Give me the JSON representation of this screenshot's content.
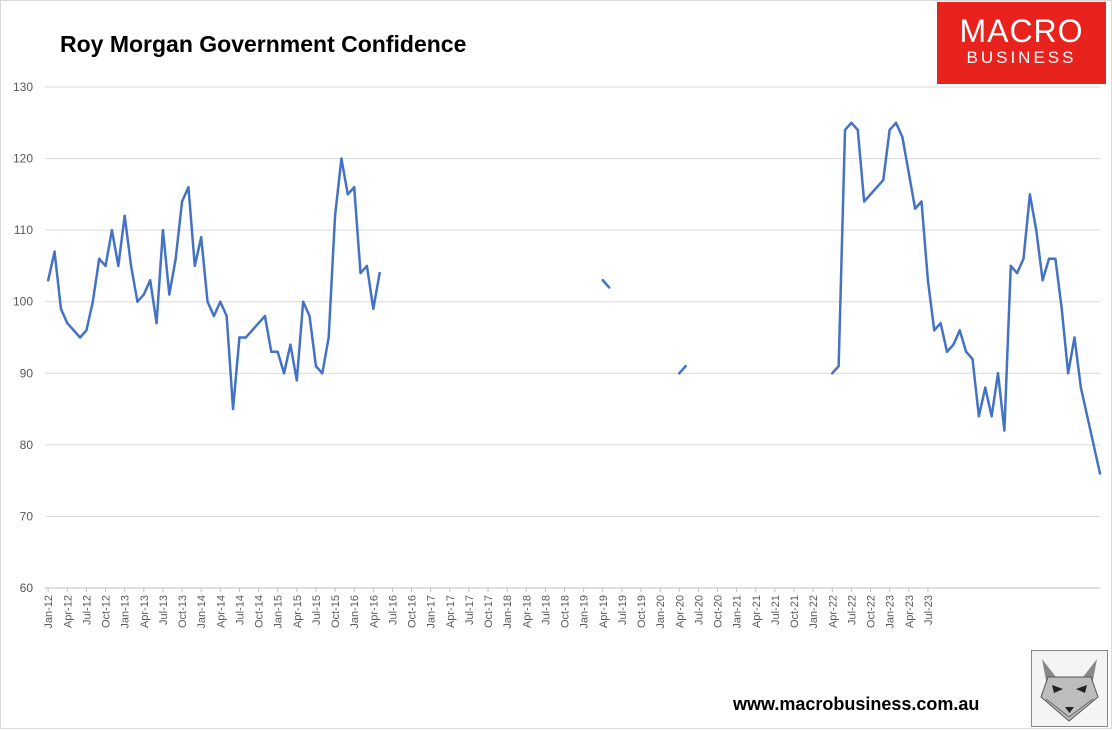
{
  "header": {
    "title": "Roy Morgan Government Confidence"
  },
  "logo": {
    "line1": "MACRO",
    "line2": "BUSINESS",
    "color": "#e8231e"
  },
  "footer": {
    "url": "www.macrobusiness.com.au",
    "mascot_icon": "fox-icon"
  },
  "chart_data": {
    "type": "line",
    "title": "Roy Morgan Government Confidence",
    "xlabel": "",
    "ylabel": "",
    "ylim": [
      60,
      130
    ],
    "yticks": [
      60,
      70,
      80,
      90,
      100,
      110,
      120,
      130
    ],
    "grid": true,
    "legend": "none",
    "line_color": "#4472c4",
    "x_tick_labels": [
      "Jan-12",
      "Apr-12",
      "Jul-12",
      "Oct-12",
      "Jan-13",
      "Apr-13",
      "Jul-13",
      "Oct-13",
      "Jan-14",
      "Apr-14",
      "Jul-14",
      "Oct-14",
      "Jan-15",
      "Apr-15",
      "Jul-15",
      "Oct-15",
      "Jan-16",
      "Apr-16",
      "Jul-16",
      "Oct-16",
      "Jan-17",
      "Apr-17",
      "Jul-17",
      "Oct-17",
      "Jan-18",
      "Apr-18",
      "Jul-18",
      "Oct-18",
      "Jan-19",
      "Apr-19",
      "Jul-19",
      "Oct-19",
      "Jan-20",
      "Apr-20",
      "Jul-20",
      "Oct-20",
      "Jan-21",
      "Apr-21",
      "Jul-21",
      "Oct-21",
      "Jan-22",
      "Apr-22",
      "Jul-22",
      "Oct-22",
      "Jan-23",
      "Apr-23",
      "Jul-23"
    ],
    "series": [
      {
        "values": [
          103,
          107,
          99,
          97,
          96,
          95,
          96,
          100,
          106,
          105,
          110,
          105,
          112,
          105,
          100,
          101,
          103,
          97,
          110,
          101,
          106,
          114,
          116,
          105,
          109,
          100,
          98,
          100,
          98,
          85,
          95,
          95,
          96,
          97,
          98,
          93,
          93,
          90,
          94,
          89,
          100,
          98,
          91,
          90,
          95,
          112,
          120,
          115,
          116,
          104,
          105,
          99,
          104,
          null,
          null,
          null,
          null,
          null,
          null,
          null,
          null,
          null,
          null,
          null,
          null,
          null,
          null,
          null,
          null,
          null,
          null,
          null,
          null,
          null,
          null,
          null,
          null,
          null,
          null,
          null,
          null,
          null,
          null,
          null,
          null,
          null,
          null,
          103,
          102,
          null,
          null,
          null,
          null,
          null,
          null,
          null,
          null,
          null,
          null,
          90,
          91,
          null,
          null,
          null,
          null,
          null,
          null,
          null,
          null,
          null,
          null,
          null,
          null,
          null,
          null,
          null,
          null,
          null,
          null,
          null,
          null,
          null,
          null,
          90,
          91,
          124,
          125,
          124,
          114,
          115,
          116,
          117,
          124,
          125,
          123,
          118,
          113,
          114,
          103,
          96,
          97,
          93,
          94,
          96,
          93,
          92,
          84,
          88,
          84,
          90,
          82,
          105,
          104,
          106,
          115,
          110,
          103,
          106,
          106,
          99,
          90,
          95,
          88,
          84,
          80,
          76
        ]
      }
    ]
  }
}
